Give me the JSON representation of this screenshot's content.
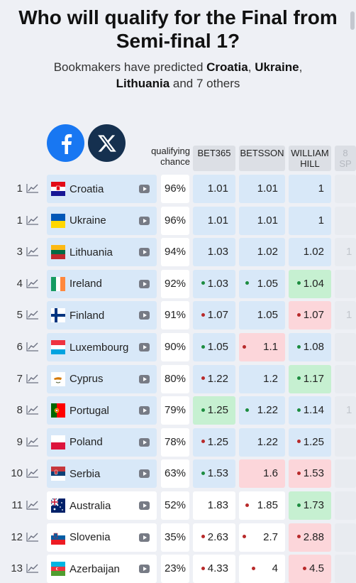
{
  "title": "Who will qualify for the Final from Semi-final 1?",
  "subtitle": {
    "prefix": "Bookmakers have predicted ",
    "c1": "Croatia",
    "sep1": ", ",
    "c2": "Ukraine",
    "sep2": ", ",
    "c3": "Lithuania",
    "suffix": " and 7 others"
  },
  "social": {
    "facebook": "facebook-icon",
    "x": "x-icon"
  },
  "columns": {
    "chance_line1": "qualifying",
    "chance_line2": "chance",
    "b1": "BET365",
    "b2": "BETSSON",
    "b3_line1": "WILLIAM",
    "b3_line2": "HILL",
    "b4_line1": "8",
    "b4_line2": "SP"
  },
  "colors": {
    "qualify_bg": "#d8e8f8",
    "default_bg": "#ffffff",
    "shorten_bg": "#c6f0d1",
    "drift_bg": "#fcd6da",
    "up_dot": "#1c8c3f",
    "down_dot": "#b82a2a"
  },
  "rows": [
    {
      "rank": "1",
      "country": "Croatia",
      "flag": "hr",
      "chance": "96%",
      "odds": [
        {
          "v": "1.01",
          "d": ""
        },
        {
          "v": "1.01",
          "d": ""
        },
        {
          "v": "1",
          "d": ""
        },
        {
          "v": "",
          "d": ""
        }
      ],
      "bg": [
        "lb",
        "lb",
        "lb",
        "lb"
      ]
    },
    {
      "rank": "1",
      "country": "Ukraine",
      "flag": "ua",
      "chance": "96%",
      "odds": [
        {
          "v": "1.01",
          "d": ""
        },
        {
          "v": "1.01",
          "d": ""
        },
        {
          "v": "1",
          "d": ""
        },
        {
          "v": "",
          "d": ""
        }
      ],
      "bg": [
        "lb",
        "lb",
        "lb",
        "lb"
      ]
    },
    {
      "rank": "3",
      "country": "Lithuania",
      "flag": "lt",
      "chance": "94%",
      "odds": [
        {
          "v": "1.03",
          "d": ""
        },
        {
          "v": "1.02",
          "d": ""
        },
        {
          "v": "1.02",
          "d": ""
        },
        {
          "v": "1",
          "d": ""
        }
      ],
      "bg": [
        "lb",
        "lb",
        "lb",
        "lb"
      ]
    },
    {
      "rank": "4",
      "country": "Ireland",
      "flag": "ie",
      "chance": "92%",
      "odds": [
        {
          "v": "1.03",
          "d": "g"
        },
        {
          "v": "1.05",
          "d": "g"
        },
        {
          "v": "1.04",
          "d": "g"
        },
        {
          "v": "",
          "d": ""
        }
      ],
      "bg": [
        "lb",
        "lb",
        "gr",
        "lb"
      ]
    },
    {
      "rank": "5",
      "country": "Finland",
      "flag": "fi",
      "chance": "91%",
      "odds": [
        {
          "v": "1.07",
          "d": "r"
        },
        {
          "v": "1.05",
          "d": ""
        },
        {
          "v": "1.07",
          "d": "r"
        },
        {
          "v": "1",
          "d": ""
        }
      ],
      "bg": [
        "lb",
        "lb",
        "pk",
        "lb"
      ]
    },
    {
      "rank": "6",
      "country": "Luxembourg",
      "flag": "lu",
      "chance": "90%",
      "odds": [
        {
          "v": "1.05",
          "d": "g"
        },
        {
          "v": "1.1",
          "d": "r"
        },
        {
          "v": "1.08",
          "d": "g"
        },
        {
          "v": "",
          "d": ""
        }
      ],
      "bg": [
        "lb",
        "pk",
        "lb",
        "lb"
      ]
    },
    {
      "rank": "7",
      "country": "Cyprus",
      "flag": "cy",
      "chance": "80%",
      "odds": [
        {
          "v": "1.22",
          "d": "r"
        },
        {
          "v": "1.2",
          "d": ""
        },
        {
          "v": "1.17",
          "d": "g"
        },
        {
          "v": "",
          "d": ""
        }
      ],
      "bg": [
        "lb",
        "lb",
        "gr",
        "lb"
      ]
    },
    {
      "rank": "8",
      "country": "Portugal",
      "flag": "pt",
      "chance": "79%",
      "odds": [
        {
          "v": "1.25",
          "d": "g"
        },
        {
          "v": "1.22",
          "d": "g"
        },
        {
          "v": "1.14",
          "d": "g"
        },
        {
          "v": "1",
          "d": ""
        }
      ],
      "bg": [
        "gr",
        "lb",
        "lb",
        "lb"
      ]
    },
    {
      "rank": "9",
      "country": "Poland",
      "flag": "pl",
      "chance": "78%",
      "odds": [
        {
          "v": "1.25",
          "d": "r"
        },
        {
          "v": "1.22",
          "d": ""
        },
        {
          "v": "1.25",
          "d": "r"
        },
        {
          "v": "",
          "d": ""
        }
      ],
      "bg": [
        "lb",
        "lb",
        "lb",
        "lb"
      ]
    },
    {
      "rank": "10",
      "country": "Serbia",
      "flag": "rs",
      "chance": "63%",
      "odds": [
        {
          "v": "1.53",
          "d": "g"
        },
        {
          "v": "1.6",
          "d": ""
        },
        {
          "v": "1.53",
          "d": "r"
        },
        {
          "v": "",
          "d": ""
        }
      ],
      "bg": [
        "lb",
        "pk",
        "pk",
        "lb"
      ]
    },
    {
      "rank": "11",
      "country": "Australia",
      "flag": "au",
      "chance": "52%",
      "odds": [
        {
          "v": "1.83",
          "d": ""
        },
        {
          "v": "1.85",
          "d": "r"
        },
        {
          "v": "1.73",
          "d": "g"
        },
        {
          "v": "",
          "d": ""
        }
      ],
      "bg": [
        "wh",
        "wh",
        "gr",
        "lb"
      ]
    },
    {
      "rank": "12",
      "country": "Slovenia",
      "flag": "si",
      "chance": "35%",
      "odds": [
        {
          "v": "2.63",
          "d": "r"
        },
        {
          "v": "2.7",
          "d": "r"
        },
        {
          "v": "2.88",
          "d": "r"
        },
        {
          "v": "",
          "d": ""
        }
      ],
      "bg": [
        "wh",
        "wh",
        "pk",
        "lb"
      ]
    },
    {
      "rank": "13",
      "country": "Azerbaijan",
      "flag": "az",
      "chance": "23%",
      "odds": [
        {
          "v": "4.33",
          "d": "r"
        },
        {
          "v": "4",
          "d": "r"
        },
        {
          "v": "4.5",
          "d": "r"
        },
        {
          "v": "",
          "d": ""
        }
      ],
      "bg": [
        "wh",
        "wh",
        "pk",
        "lb"
      ]
    }
  ]
}
